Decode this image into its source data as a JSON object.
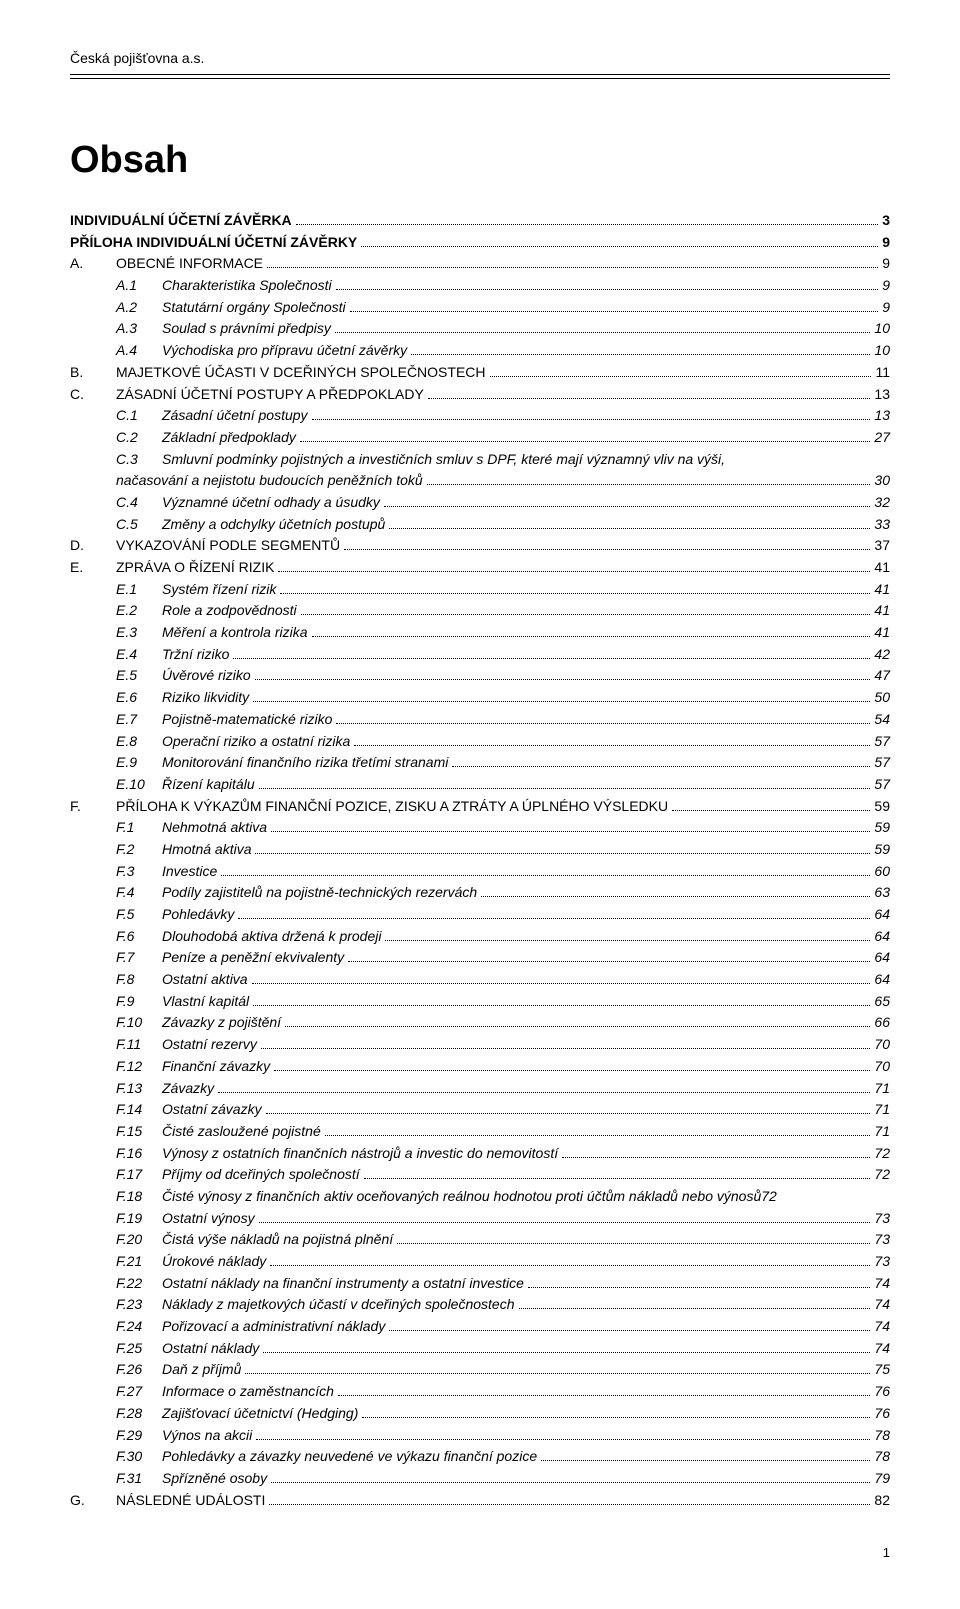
{
  "company": "Česká pojišťovna a.s.",
  "title": "Obsah",
  "footer_page": "1",
  "toc": [
    {
      "level": 0,
      "num": "",
      "text": "INDIVIDUÁLNÍ ÚČETNÍ ZÁVĚRKA",
      "page": "3",
      "bold": true,
      "smallcaps": false
    },
    {
      "level": 0,
      "num": "",
      "text": "PŘÍLOHA INDIVIDUÁLNÍ ÚČETNÍ ZÁVĚRKY",
      "page": "9",
      "bold": true,
      "smallcaps": false
    },
    {
      "level": 1,
      "num": "A.",
      "text": "OBECNÉ INFORMACE",
      "page": "9",
      "smallcaps": true
    },
    {
      "level": 2,
      "num": "A.1",
      "text": "Charakteristika Společnosti",
      "page": "9",
      "italic": true
    },
    {
      "level": 2,
      "num": "A.2",
      "text": "Statutární orgány Společnosti",
      "page": "9",
      "italic": true
    },
    {
      "level": 2,
      "num": "A.3",
      "text": "Soulad s právními předpisy",
      "page": "10",
      "italic": true
    },
    {
      "level": 2,
      "num": "A.4",
      "text": "Východiska pro přípravu účetní závěrky",
      "page": "10",
      "italic": true
    },
    {
      "level": 1,
      "num": "B.",
      "text": "MAJETKOVÉ ÚČASTI V DCEŘINÝCH SPOLEČNOSTECH",
      "page": "11",
      "smallcaps": true
    },
    {
      "level": 1,
      "num": "C.",
      "text": "ZÁSADNÍ ÚČETNÍ POSTUPY A PŘEDPOKLADY",
      "page": "13",
      "smallcaps": true
    },
    {
      "level": 2,
      "num": "C.1",
      "text": "Zásadní účetní postupy",
      "page": "13",
      "italic": true
    },
    {
      "level": 2,
      "num": "C.2",
      "text": "Základní předpoklady",
      "page": "27",
      "italic": true
    },
    {
      "level": 2,
      "num": "C.3",
      "text": "Smluvní podmínky pojistných a investičních smluv s DPF, které mají významný vliv na výši, načasování a nejistotu budoucích peněžních toků",
      "page": "30",
      "italic": true,
      "wrap": true
    },
    {
      "level": 2,
      "num": "C.4",
      "text": "Významné účetní odhady a úsudky",
      "page": "32",
      "italic": true
    },
    {
      "level": 2,
      "num": "C.5",
      "text": "Změny a odchylky účetních postupů",
      "page": "33",
      "italic": true
    },
    {
      "level": 1,
      "num": "D.",
      "text": "VYKAZOVÁNÍ PODLE SEGMENTŮ",
      "page": "37",
      "smallcaps": true
    },
    {
      "level": 1,
      "num": "E.",
      "text": "ZPRÁVA O ŘÍZENÍ RIZIK",
      "page": "41",
      "smallcaps": true
    },
    {
      "level": 2,
      "num": "E.1",
      "text": "Systém řízení rizik",
      "page": "41",
      "italic": true
    },
    {
      "level": 2,
      "num": "E.2",
      "text": "Role a zodpovědnosti",
      "page": "41",
      "italic": true
    },
    {
      "level": 2,
      "num": "E.3",
      "text": "Měření a kontrola rizika",
      "page": "41",
      "italic": true
    },
    {
      "level": 2,
      "num": "E.4",
      "text": "Tržní riziko",
      "page": "42",
      "italic": true
    },
    {
      "level": 2,
      "num": "E.5",
      "text": "Úvěrové riziko",
      "page": "47",
      "italic": true
    },
    {
      "level": 2,
      "num": "E.6",
      "text": "Riziko likvidity",
      "page": "50",
      "italic": true
    },
    {
      "level": 2,
      "num": "E.7",
      "text": "Pojistně-matematické riziko",
      "page": "54",
      "italic": true
    },
    {
      "level": 2,
      "num": "E.8",
      "text": "Operační riziko a ostatní rizika",
      "page": "57",
      "italic": true
    },
    {
      "level": 2,
      "num": "E.9",
      "text": "Monitorování finančního rizika třetími stranami",
      "page": "57",
      "italic": true
    },
    {
      "level": 2,
      "num": "E.10",
      "text": "Řízení kapitálu",
      "page": "57",
      "italic": true
    },
    {
      "level": 1,
      "num": "F.",
      "text": "PŘÍLOHA K VÝKAZŮM FINANČNÍ POZICE, ZISKU A ZTRÁTY A ÚPLNÉHO VÝSLEDKU",
      "page": "59",
      "smallcaps": true
    },
    {
      "level": 2,
      "num": "F.1",
      "text": "Nehmotná aktiva",
      "page": "59",
      "italic": true
    },
    {
      "level": 2,
      "num": "F.2",
      "text": "Hmotná aktiva",
      "page": "59",
      "italic": true
    },
    {
      "level": 2,
      "num": "F.3",
      "text": "Investice",
      "page": "60",
      "italic": true
    },
    {
      "level": 2,
      "num": "F.4",
      "text": "Podíly zajistitelů na pojistně-technických rezervách",
      "page": "63",
      "italic": true
    },
    {
      "level": 2,
      "num": "F.5",
      "text": "Pohledávky",
      "page": "64",
      "italic": true
    },
    {
      "level": 2,
      "num": "F.6",
      "text": "Dlouhodobá aktiva držená k prodeji",
      "page": "64",
      "italic": true
    },
    {
      "level": 2,
      "num": "F.7",
      "text": "Peníze a peněžní ekvivalenty",
      "page": "64",
      "italic": true
    },
    {
      "level": 2,
      "num": "F.8",
      "text": "Ostatní aktiva",
      "page": "64",
      "italic": true
    },
    {
      "level": 2,
      "num": "F.9",
      "text": "Vlastní kapitál",
      "page": "65",
      "italic": true
    },
    {
      "level": 2,
      "num": "F.10",
      "text": "Závazky z pojištění",
      "page": "66",
      "italic": true
    },
    {
      "level": 2,
      "num": "F.11",
      "text": "Ostatní rezervy",
      "page": "70",
      "italic": true
    },
    {
      "level": 2,
      "num": "F.12",
      "text": "Finanční závazky",
      "page": "70",
      "italic": true
    },
    {
      "level": 2,
      "num": "F.13",
      "text": "Závazky",
      "page": "71",
      "italic": true
    },
    {
      "level": 2,
      "num": "F.14",
      "text": "Ostatní závazky",
      "page": "71",
      "italic": true
    },
    {
      "level": 2,
      "num": "F.15",
      "text": "Čisté zasloužené pojistné",
      "page": "71",
      "italic": true
    },
    {
      "level": 2,
      "num": "F.16",
      "text": "Výnosy z ostatních finančních nástrojů a investic do nemovitostí",
      "page": "72",
      "italic": true
    },
    {
      "level": 2,
      "num": "F.17",
      "text": "Příjmy od dceřiných společností",
      "page": "72",
      "italic": true
    },
    {
      "level": 2,
      "num": "F.18",
      "text": "Čisté výnosy z finančních aktiv oceňovaných reálnou hodnotou proti účtům nákladů nebo výnosů",
      "page": "72",
      "italic": true,
      "tight": true
    },
    {
      "level": 2,
      "num": "F.19",
      "text": "Ostatní výnosy",
      "page": "73",
      "italic": true
    },
    {
      "level": 2,
      "num": "F.20",
      "text": "Čistá výše nákladů na pojistná plnění",
      "page": "73",
      "italic": true
    },
    {
      "level": 2,
      "num": "F.21",
      "text": "Úrokové náklady",
      "page": "73",
      "italic": true
    },
    {
      "level": 2,
      "num": "F.22",
      "text": "Ostatní náklady na finanční instrumenty a ostatní investice",
      "page": "74",
      "italic": true
    },
    {
      "level": 2,
      "num": "F.23",
      "text": "Náklady z majetkových účastí v dceřiných společnostech",
      "page": "74",
      "italic": true
    },
    {
      "level": 2,
      "num": "F.24",
      "text": "Pořizovací a administrativní náklady",
      "page": "74",
      "italic": true
    },
    {
      "level": 2,
      "num": "F.25",
      "text": "Ostatní náklady",
      "page": "74",
      "italic": true
    },
    {
      "level": 2,
      "num": "F.26",
      "text": "Daň z příjmů",
      "page": "75",
      "italic": true
    },
    {
      "level": 2,
      "num": "F.27",
      "text": "Informace o zaměstnancích",
      "page": "76",
      "italic": true
    },
    {
      "level": 2,
      "num": "F.28",
      "text": "Zajišťovací účetnictví (Hedging)",
      "page": "76",
      "italic": true
    },
    {
      "level": 2,
      "num": "F.29",
      "text": "Výnos na akcii",
      "page": "78",
      "italic": true
    },
    {
      "level": 2,
      "num": "F.30",
      "text": "Pohledávky a závazky neuvedené ve výkazu finanční pozice",
      "page": "78",
      "italic": true
    },
    {
      "level": 2,
      "num": "F.31",
      "text": "Spřízněné osoby",
      "page": "79",
      "italic": true
    },
    {
      "level": 1,
      "num": "G.",
      "text": "NÁSLEDNÉ UDÁLOSTI",
      "page": "82",
      "smallcaps": true
    }
  ]
}
